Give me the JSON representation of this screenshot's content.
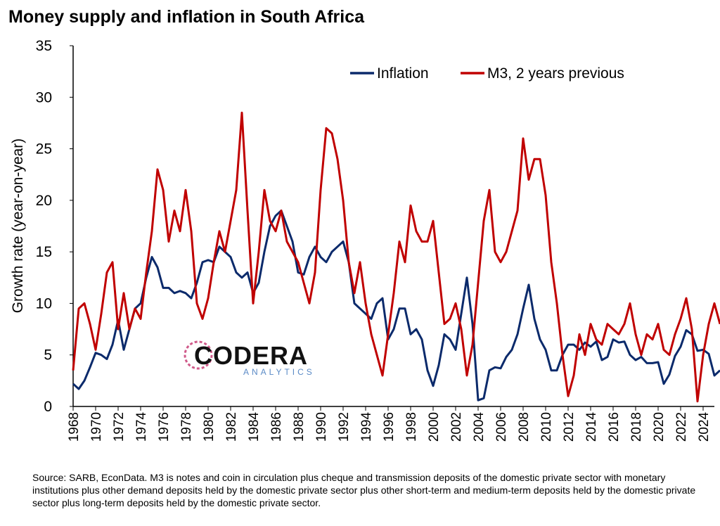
{
  "chart_data": {
    "type": "line",
    "title": "Money supply and inflation in South Africa",
    "ylabel": "Growth rate (year-on-year)",
    "logo": {
      "name": "CODERA",
      "tagline": "ANALYTICS"
    },
    "source": "Source: SARB, EconData. M3 is notes and coin in circulation plus cheque and transmission deposits of the domestic private sector with monetary institutions plus other demand deposits held by the domestic private sector plus other short-term and medium-term deposits held by the domestic private sector plus long-term deposits held by the domestic private sector.",
    "xlim": [
      1968,
      2025
    ],
    "xticks": [
      1968,
      1970,
      1972,
      1974,
      1976,
      1978,
      1980,
      1982,
      1984,
      1986,
      1988,
      1990,
      1992,
      1994,
      1996,
      1998,
      2000,
      2002,
      2004,
      2006,
      2008,
      2010,
      2012,
      2014,
      2016,
      2018,
      2020,
      2022,
      2024
    ],
    "ylim": [
      0,
      35
    ],
    "yticks": [
      0,
      5,
      10,
      15,
      20,
      25,
      30,
      35
    ],
    "legend": "top-right",
    "x": [
      1968,
      1968.5,
      1969,
      1969.5,
      1970,
      1970.5,
      1971,
      1971.5,
      1972,
      1972.5,
      1973,
      1973.5,
      1974,
      1974.5,
      1975,
      1975.5,
      1976,
      1976.5,
      1977,
      1977.5,
      1978,
      1978.5,
      1979,
      1979.5,
      1980,
      1980.5,
      1981,
      1981.5,
      1982,
      1982.5,
      1983,
      1983.5,
      1984,
      1984.5,
      1985,
      1985.5,
      1986,
      1986.5,
      1987,
      1987.5,
      1988,
      1988.5,
      1989,
      1989.5,
      1990,
      1990.5,
      1991,
      1991.5,
      1992,
      1992.5,
      1993,
      1993.5,
      1994,
      1994.5,
      1995,
      1995.5,
      1996,
      1996.5,
      1997,
      1997.5,
      1998,
      1998.5,
      1999,
      1999.5,
      2000,
      2000.5,
      2001,
      2001.5,
      2002,
      2002.5,
      2003,
      2003.5,
      2004,
      2004.5,
      2005,
      2005.5,
      2006,
      2006.5,
      2007,
      2007.5,
      2008,
      2008.5,
      2009,
      2009.5,
      2010,
      2010.5,
      2011,
      2011.5,
      2012,
      2012.5,
      2013,
      2013.5,
      2014,
      2014.5,
      2015,
      2015.5,
      2016,
      2016.5,
      2017,
      2017.5,
      2018,
      2018.5,
      2019,
      2019.5,
      2020,
      2020.5,
      2021,
      2021.5,
      2022,
      2022.5,
      2023,
      2023.5,
      2024,
      2024.5,
      2025,
      2025.5
    ],
    "series": [
      {
        "name": "Inflation",
        "color": "#0b2a6b",
        "values": [
          2.2,
          1.7,
          2.5,
          3.8,
          5.2,
          5.0,
          4.6,
          6.0,
          8.4,
          5.5,
          7.5,
          9.5,
          10,
          12.5,
          14.5,
          13.5,
          11.5,
          11.5,
          11,
          11.2,
          11,
          10.5,
          12,
          14,
          14.2,
          14,
          15.5,
          15,
          14.5,
          13,
          12.5,
          13,
          11,
          12,
          15,
          17.5,
          18.5,
          19,
          17.5,
          16,
          13,
          12.8,
          14.5,
          15.5,
          14.5,
          14,
          15,
          15.5,
          16,
          14,
          10,
          9.5,
          9,
          8.5,
          10,
          10.5,
          6.5,
          7.5,
          9.5,
          9.5,
          7,
          7.5,
          6.5,
          3.5,
          2,
          4,
          7,
          6.5,
          5.5,
          9,
          12.5,
          8,
          0.6,
          0.8,
          3.5,
          3.8,
          3.7,
          4.8,
          5.5,
          7,
          9.5,
          11.8,
          8.5,
          6.5,
          5.5,
          3.5,
          3.5,
          5,
          6,
          6,
          5.5,
          6.2,
          5.8,
          6.3,
          4.5,
          4.8,
          6.5,
          6.2,
          6.3,
          5,
          4.5,
          4.8,
          4.2,
          4.2,
          4.3,
          2.2,
          3.1,
          4.9,
          5.8,
          7.4,
          7,
          5.4,
          5.5,
          5.1,
          3,
          3.5
        ]
      },
      {
        "name": "M3, 2 years previous",
        "color": "#c00000",
        "values": [
          3.5,
          9.5,
          10,
          8,
          5.5,
          9,
          13,
          14,
          7.5,
          11,
          7.5,
          9.5,
          8.5,
          13,
          17,
          23,
          21,
          16,
          19,
          17,
          21,
          17,
          10,
          8.5,
          10.5,
          14,
          17,
          15,
          18,
          21,
          28.5,
          19,
          10,
          15,
          21,
          18,
          17,
          19,
          16,
          15,
          14,
          12,
          10,
          13,
          21,
          27,
          26.5,
          24,
          20,
          14,
          11,
          14,
          10,
          7,
          5,
          3,
          7,
          11,
          16,
          14,
          19.5,
          17,
          16,
          16,
          18,
          13,
          8,
          8.5,
          10,
          7.5,
          3,
          6,
          12,
          18,
          21,
          15,
          14,
          15,
          17,
          19,
          26,
          22,
          24,
          24,
          20.5,
          14,
          10,
          5,
          1,
          3,
          7,
          5,
          8,
          6.5,
          6,
          8,
          7.5,
          7,
          8,
          10,
          7,
          5,
          7,
          6.5,
          8,
          5.5,
          5,
          7,
          8.5,
          10.5,
          7.5,
          0.5,
          5,
          8,
          10,
          8
        ]
      }
    ]
  }
}
